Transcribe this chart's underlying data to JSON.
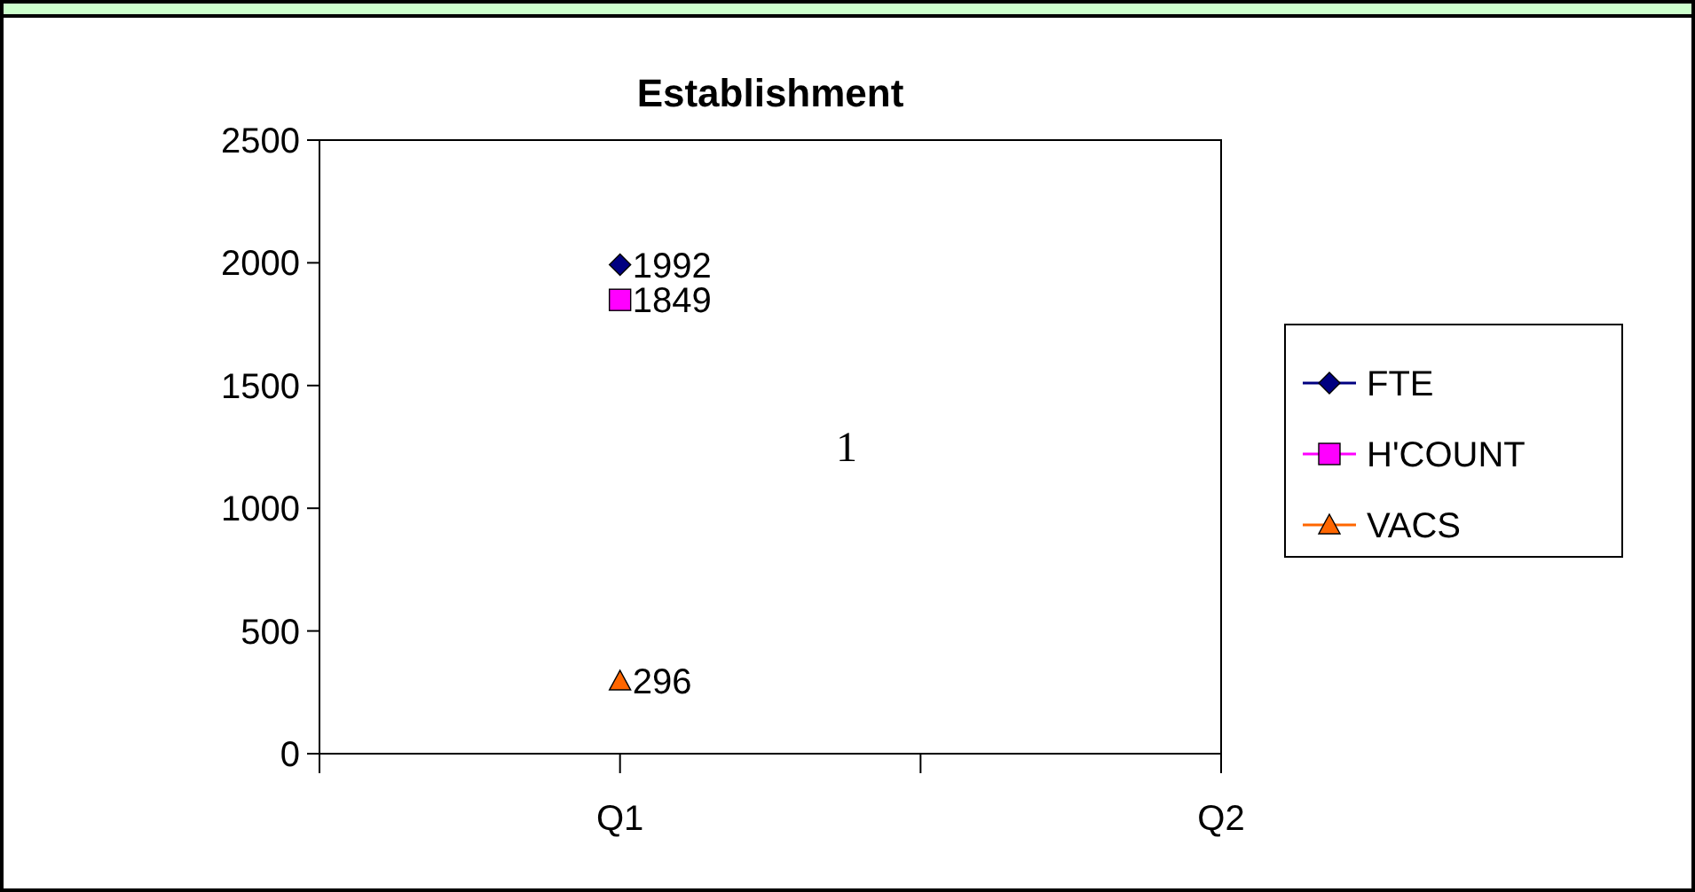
{
  "chart_data": {
    "type": "line",
    "title": "Establishment",
    "categories": [
      null,
      "Q1",
      null,
      "Q2"
    ],
    "series": [
      {
        "name": "FTE",
        "color": "#000080",
        "marker": "diamond",
        "values": [
          null,
          1992,
          null,
          null
        ]
      },
      {
        "name": "H'COUNT",
        "color": "#ff00ff",
        "marker": "square",
        "values": [
          null,
          1849,
          null,
          null
        ]
      },
      {
        "name": "VACS",
        "color": "#ff6600",
        "marker": "triangle",
        "values": [
          null,
          296,
          null,
          null
        ]
      }
    ],
    "ylim": [
      0,
      2500
    ],
    "yticks": [
      0,
      500,
      1000,
      1500,
      2000,
      2500
    ],
    "grid": false,
    "legend": "right",
    "data_labels": true,
    "line_style": "solid",
    "annotations": [
      "1"
    ]
  }
}
